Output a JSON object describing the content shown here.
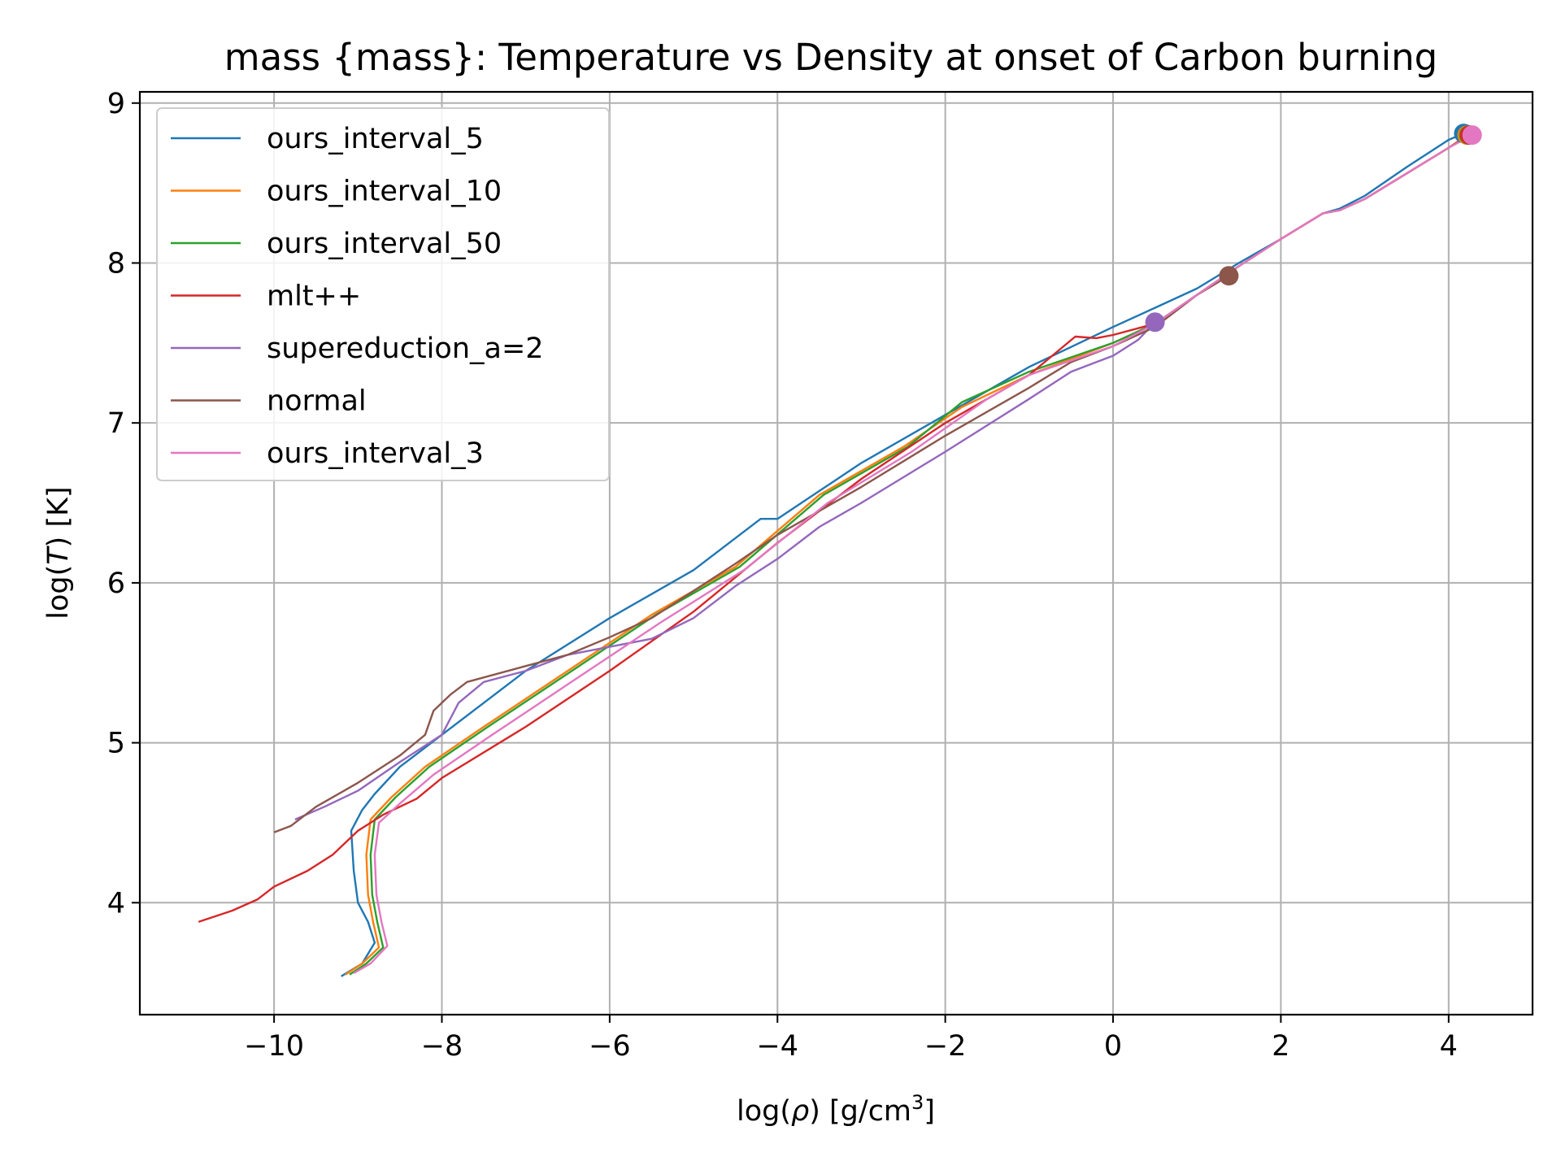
{
  "chart_data": {
    "type": "line",
    "title": "mass {mass}: Temperature vs Density at onset of Carbon burning",
    "xlabel": {
      "prefix": "log(",
      "symbol": "ρ",
      "suffix": ")  [g/cm",
      "sup": "3",
      "end": "]"
    },
    "ylabel": {
      "prefix": "log(",
      "symbol": "T",
      "suffix": ")  [K]"
    },
    "xlim": [
      -11.6,
      5.0
    ],
    "ylim": [
      3.3,
      9.07
    ],
    "xticks": [
      -10,
      -8,
      -6,
      -4,
      -2,
      0,
      2,
      4
    ],
    "yticks": [
      4,
      5,
      6,
      7,
      8,
      9
    ],
    "grid": true,
    "legend_position": "upper-left",
    "series": [
      {
        "name": "ours_interval_5",
        "color": "#1f77b4",
        "points": [
          [
            -9.2,
            3.54
          ],
          [
            -8.95,
            3.62
          ],
          [
            -8.8,
            3.75
          ],
          [
            -8.88,
            3.88
          ],
          [
            -9.0,
            4.0
          ],
          [
            -9.05,
            4.2
          ],
          [
            -9.08,
            4.45
          ],
          [
            -8.95,
            4.58
          ],
          [
            -8.8,
            4.68
          ],
          [
            -8.5,
            4.85
          ],
          [
            -8.0,
            5.05
          ],
          [
            -7.0,
            5.45
          ],
          [
            -6.0,
            5.78
          ],
          [
            -5.0,
            6.08
          ],
          [
            -4.2,
            6.4
          ],
          [
            -4.0,
            6.4
          ],
          [
            -3.0,
            6.75
          ],
          [
            -2.0,
            7.05
          ],
          [
            -1.0,
            7.35
          ],
          [
            0.0,
            7.6
          ],
          [
            0.5,
            7.72
          ],
          [
            1.0,
            7.84
          ],
          [
            1.5,
            8.0
          ],
          [
            2.0,
            8.15
          ],
          [
            2.5,
            8.31
          ],
          [
            2.7,
            8.34
          ],
          [
            3.0,
            8.42
          ],
          [
            3.5,
            8.6
          ],
          [
            4.0,
            8.77
          ],
          [
            4.18,
            8.81
          ]
        ],
        "end_marker": [
          4.18,
          8.81
        ]
      },
      {
        "name": "ours_interval_10",
        "color": "#ff7f0e",
        "points": [
          [
            -9.15,
            3.55
          ],
          [
            -8.95,
            3.62
          ],
          [
            -8.75,
            3.72
          ],
          [
            -8.82,
            3.88
          ],
          [
            -8.88,
            4.05
          ],
          [
            -8.9,
            4.3
          ],
          [
            -8.85,
            4.52
          ],
          [
            -8.6,
            4.66
          ],
          [
            -8.2,
            4.85
          ],
          [
            -7.5,
            5.1
          ],
          [
            -6.5,
            5.45
          ],
          [
            -5.5,
            5.8
          ],
          [
            -4.5,
            6.1
          ],
          [
            -3.5,
            6.55
          ],
          [
            -2.5,
            6.85
          ],
          [
            -1.8,
            7.1
          ],
          [
            -1.0,
            7.3
          ],
          [
            0.0,
            7.5
          ],
          [
            0.5,
            7.62
          ],
          [
            1.0,
            7.8
          ],
          [
            1.5,
            7.98
          ],
          [
            2.0,
            8.15
          ],
          [
            2.5,
            8.31
          ],
          [
            2.7,
            8.33
          ],
          [
            3.0,
            8.4
          ],
          [
            3.5,
            8.56
          ],
          [
            4.0,
            8.72
          ],
          [
            4.22,
            8.8
          ]
        ],
        "end_marker": [
          4.22,
          8.8
        ]
      },
      {
        "name": "ours_interval_50",
        "color": "#2ca02c",
        "points": [
          [
            -9.1,
            3.55
          ],
          [
            -8.9,
            3.62
          ],
          [
            -8.7,
            3.72
          ],
          [
            -8.77,
            3.88
          ],
          [
            -8.83,
            4.05
          ],
          [
            -8.85,
            4.3
          ],
          [
            -8.8,
            4.52
          ],
          [
            -8.55,
            4.66
          ],
          [
            -8.15,
            4.85
          ],
          [
            -7.45,
            5.1
          ],
          [
            -6.45,
            5.45
          ],
          [
            -5.45,
            5.8
          ],
          [
            -4.45,
            6.1
          ],
          [
            -3.45,
            6.55
          ],
          [
            -2.45,
            6.85
          ],
          [
            -1.8,
            7.13
          ],
          [
            -1.0,
            7.32
          ],
          [
            0.0,
            7.5
          ],
          [
            0.5,
            7.62
          ],
          [
            1.0,
            7.8
          ],
          [
            1.5,
            7.98
          ],
          [
            2.0,
            8.15
          ],
          [
            2.5,
            8.31
          ],
          [
            2.7,
            8.33
          ],
          [
            3.0,
            8.4
          ],
          [
            3.5,
            8.56
          ],
          [
            4.0,
            8.72
          ],
          [
            4.24,
            8.8
          ]
        ],
        "end_marker": [
          4.24,
          8.8
        ]
      },
      {
        "name": "mlt++",
        "color": "#d62728",
        "points": [
          [
            -10.9,
            3.88
          ],
          [
            -10.5,
            3.95
          ],
          [
            -10.2,
            4.02
          ],
          [
            -10.0,
            4.1
          ],
          [
            -9.6,
            4.2
          ],
          [
            -9.3,
            4.3
          ],
          [
            -9.0,
            4.45
          ],
          [
            -8.7,
            4.55
          ],
          [
            -8.3,
            4.65
          ],
          [
            -8.0,
            4.78
          ],
          [
            -7.0,
            5.1
          ],
          [
            -6.0,
            5.45
          ],
          [
            -5.0,
            5.82
          ],
          [
            -4.0,
            6.25
          ],
          [
            -3.0,
            6.65
          ],
          [
            -2.0,
            7.0
          ],
          [
            -1.0,
            7.3
          ],
          [
            -0.45,
            7.54
          ],
          [
            -0.2,
            7.53
          ],
          [
            0.0,
            7.55
          ],
          [
            0.5,
            7.62
          ],
          [
            1.0,
            7.8
          ],
          [
            1.5,
            7.98
          ],
          [
            2.0,
            8.15
          ],
          [
            2.5,
            8.31
          ],
          [
            2.7,
            8.33
          ],
          [
            3.0,
            8.4
          ],
          [
            3.5,
            8.56
          ],
          [
            4.0,
            8.72
          ],
          [
            4.25,
            8.8
          ]
        ],
        "end_marker": [
          4.25,
          8.8
        ]
      },
      {
        "name": "supereduction_a=2",
        "color": "#9467bd",
        "points": [
          [
            -9.75,
            4.52
          ],
          [
            -9.4,
            4.6
          ],
          [
            -9.0,
            4.7
          ],
          [
            -8.5,
            4.88
          ],
          [
            -8.0,
            5.05
          ],
          [
            -7.8,
            5.25
          ],
          [
            -7.5,
            5.38
          ],
          [
            -7.0,
            5.45
          ],
          [
            -6.5,
            5.55
          ],
          [
            -6.0,
            5.6
          ],
          [
            -5.5,
            5.65
          ],
          [
            -5.0,
            5.78
          ],
          [
            -4.5,
            5.98
          ],
          [
            -4.0,
            6.15
          ],
          [
            -3.5,
            6.35
          ],
          [
            -3.0,
            6.5
          ],
          [
            -2.0,
            6.82
          ],
          [
            -1.0,
            7.15
          ],
          [
            -0.5,
            7.32
          ],
          [
            -0.2,
            7.38
          ],
          [
            0.0,
            7.42
          ],
          [
            0.3,
            7.52
          ],
          [
            0.5,
            7.63
          ]
        ],
        "end_marker": [
          0.5,
          7.63
        ]
      },
      {
        "name": "normal",
        "color": "#8c564b",
        "points": [
          [
            -10.0,
            4.44
          ],
          [
            -9.8,
            4.48
          ],
          [
            -9.5,
            4.6
          ],
          [
            -9.0,
            4.75
          ],
          [
            -8.5,
            4.92
          ],
          [
            -8.2,
            5.05
          ],
          [
            -8.1,
            5.2
          ],
          [
            -7.9,
            5.3
          ],
          [
            -7.7,
            5.38
          ],
          [
            -7.0,
            5.48
          ],
          [
            -6.5,
            5.55
          ],
          [
            -6.0,
            5.66
          ],
          [
            -5.5,
            5.78
          ],
          [
            -5.0,
            5.95
          ],
          [
            -4.5,
            6.12
          ],
          [
            -4.0,
            6.3
          ],
          [
            -3.0,
            6.6
          ],
          [
            -2.0,
            6.92
          ],
          [
            -1.0,
            7.22
          ],
          [
            -0.5,
            7.38
          ],
          [
            0.0,
            7.48
          ],
          [
            0.5,
            7.6
          ],
          [
            1.0,
            7.8
          ],
          [
            1.38,
            7.92
          ]
        ],
        "end_marker": [
          1.38,
          7.92
        ]
      },
      {
        "name": "ours_interval_3",
        "color": "#e377c2",
        "points": [
          [
            -9.05,
            3.56
          ],
          [
            -8.85,
            3.62
          ],
          [
            -8.65,
            3.73
          ],
          [
            -8.72,
            3.88
          ],
          [
            -8.78,
            4.05
          ],
          [
            -8.8,
            4.3
          ],
          [
            -8.75,
            4.5
          ],
          [
            -8.5,
            4.62
          ],
          [
            -8.1,
            4.8
          ],
          [
            -7.4,
            5.05
          ],
          [
            -6.4,
            5.4
          ],
          [
            -5.4,
            5.75
          ],
          [
            -4.4,
            6.08
          ],
          [
            -3.4,
            6.5
          ],
          [
            -2.4,
            6.82
          ],
          [
            -1.5,
            7.15
          ],
          [
            -1.0,
            7.3
          ],
          [
            0.0,
            7.48
          ],
          [
            0.5,
            7.62
          ],
          [
            1.0,
            7.8
          ],
          [
            1.5,
            7.98
          ],
          [
            2.0,
            8.15
          ],
          [
            2.5,
            8.31
          ],
          [
            2.7,
            8.33
          ],
          [
            3.0,
            8.4
          ],
          [
            3.5,
            8.56
          ],
          [
            4.0,
            8.72
          ],
          [
            4.28,
            8.8
          ]
        ],
        "end_marker": [
          4.28,
          8.8
        ]
      }
    ]
  }
}
